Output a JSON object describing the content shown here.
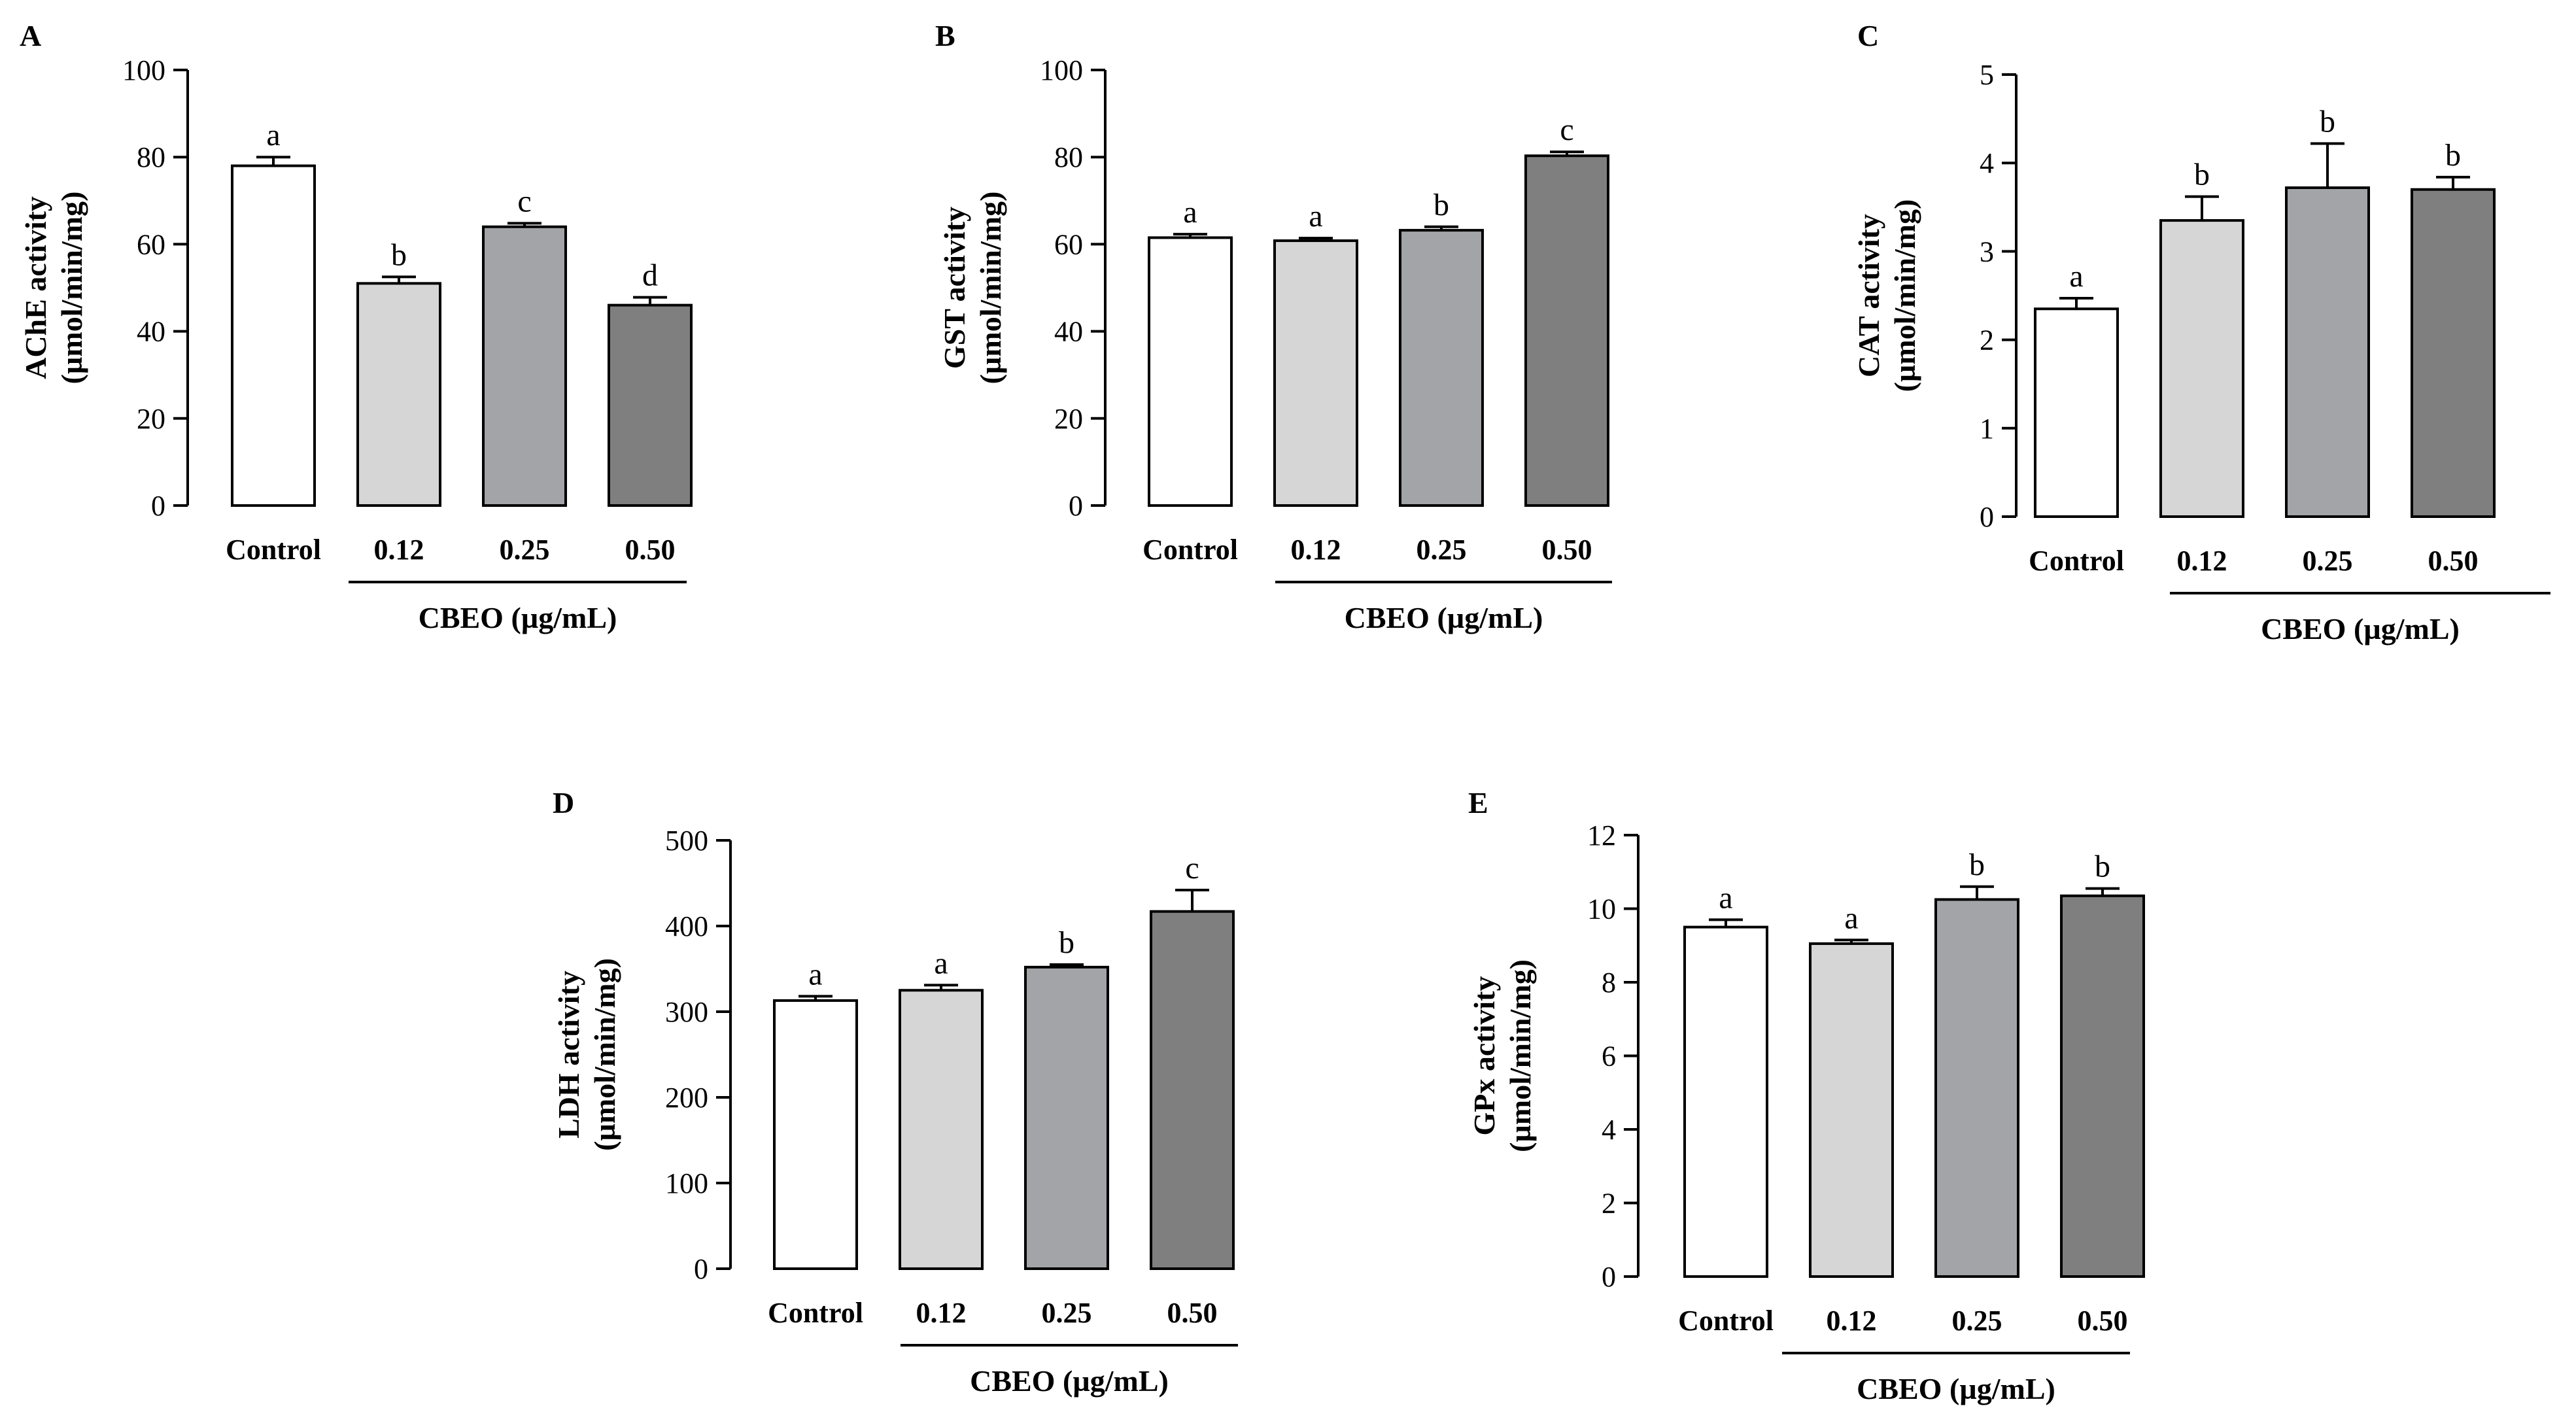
{
  "chart_data": [
    {
      "type": "bar",
      "panel": "A",
      "ylabel_line1": "AChE activity",
      "ylabel_line2": "(µmol/min/mg)",
      "categories": [
        "Control",
        "0.12",
        "0.25",
        "0.50"
      ],
      "values": [
        78,
        51,
        64,
        46
      ],
      "errors": [
        2,
        1.5,
        0.8,
        1.8
      ],
      "significance": [
        "a",
        "b",
        "c",
        "d"
      ],
      "colors": [
        "#ffffff",
        "#d6d6d6",
        "#a3a4a8",
        "#7f7f7f"
      ],
      "group_label": "CBEO (µg/mL)",
      "ylim": [
        0,
        100
      ],
      "yticks": [
        0,
        20,
        40,
        60,
        80,
        100
      ]
    },
    {
      "type": "bar",
      "panel": "B",
      "ylabel_line1": "GST activity",
      "ylabel_line2": "(µmol/min/mg)",
      "categories": [
        "Control",
        "0.12",
        "0.25",
        "0.50"
      ],
      "values": [
        61.5,
        60.8,
        63.2,
        80.3
      ],
      "errors": [
        0.8,
        0.6,
        0.8,
        0.9
      ],
      "significance": [
        "a",
        "a",
        "b",
        "c"
      ],
      "colors": [
        "#ffffff",
        "#d6d6d6",
        "#a3a4a8",
        "#7f7f7f"
      ],
      "group_label": "CBEO (µg/mL)",
      "ylim": [
        0,
        100
      ],
      "yticks": [
        0,
        20,
        40,
        60,
        80,
        100
      ]
    },
    {
      "type": "bar",
      "panel": "C",
      "ylabel_line1": "CAT activity",
      "ylabel_line2": "(µmol/min/mg)",
      "categories": [
        "Control",
        "0.12",
        "0.25",
        "0.50"
      ],
      "values": [
        2.35,
        3.35,
        3.72,
        3.7
      ],
      "errors": [
        0.12,
        0.27,
        0.5,
        0.14
      ],
      "significance": [
        "a",
        "b",
        "b",
        "b"
      ],
      "colors": [
        "#ffffff",
        "#d6d6d6",
        "#a3a4a8",
        "#7f7f7f"
      ],
      "group_label": "CBEO (µg/mL)",
      "ylim": [
        0,
        5
      ],
      "yticks": [
        0,
        1,
        2,
        3,
        4,
        5
      ]
    },
    {
      "type": "bar",
      "panel": "D",
      "ylabel_line1": "LDH activity",
      "ylabel_line2": "(µmol/min/mg)",
      "categories": [
        "Control",
        "0.12",
        "0.25",
        "0.50"
      ],
      "values": [
        313,
        325,
        352,
        417
      ],
      "errors": [
        5,
        6,
        3,
        25
      ],
      "significance": [
        "a",
        "a",
        "b",
        "c"
      ],
      "colors": [
        "#ffffff",
        "#d6d6d6",
        "#a3a4a8",
        "#7f7f7f"
      ],
      "group_label": "CBEO (µg/mL)",
      "ylim": [
        0,
        500
      ],
      "yticks": [
        0,
        100,
        200,
        300,
        400,
        500
      ]
    },
    {
      "type": "bar",
      "panel": "E",
      "ylabel_line1": "GPx activity",
      "ylabel_line2": "(µmol/min/mg)",
      "categories": [
        "Control",
        "0.12",
        "0.25",
        "0.50"
      ],
      "values": [
        9.5,
        9.05,
        10.25,
        10.35
      ],
      "errors": [
        0.2,
        0.1,
        0.35,
        0.2
      ],
      "significance": [
        "a",
        "a",
        "b",
        "b"
      ],
      "colors": [
        "#ffffff",
        "#d6d6d6",
        "#a3a4a8",
        "#7f7f7f"
      ],
      "group_label": "CBEO (µg/mL)",
      "ylim": [
        0,
        12
      ],
      "yticks": [
        0,
        2,
        4,
        6,
        8,
        10,
        12
      ]
    }
  ]
}
